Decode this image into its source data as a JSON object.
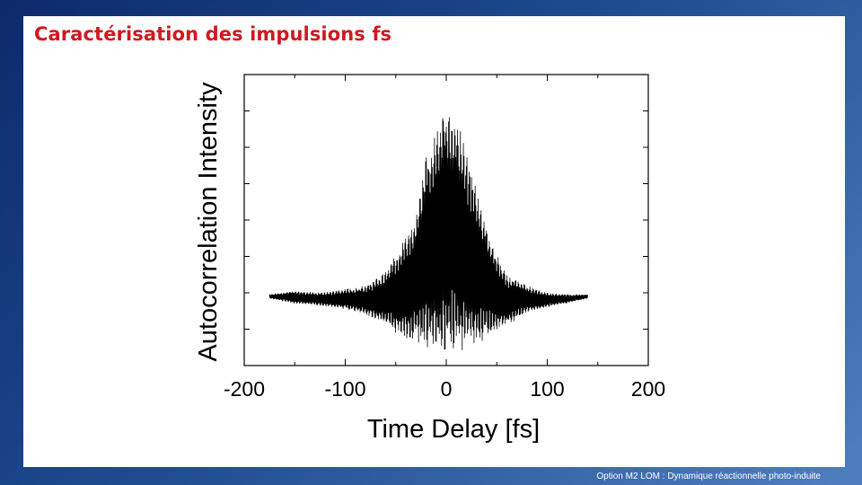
{
  "slide": {
    "title": "Caractérisation des impulsions fs",
    "footer": "Option M2 LOM : Dynamique réactionnelle photo-induite"
  },
  "chart_data": {
    "type": "line",
    "title": "",
    "xlabel": "Time Delay [fs]",
    "ylabel": "Autocorrelation Intensity",
    "xlim": [
      -200,
      200
    ],
    "ylim": [
      0,
      8
    ],
    "x_ticks": [
      -200,
      -100,
      0,
      100,
      200
    ],
    "x_tick_labels": [
      "-200",
      "-100",
      "0",
      "100",
      "200"
    ],
    "y_tick_labels_shown": false,
    "grid": false,
    "series": [
      {
        "x": [
          -175,
          -150,
          -125,
          -100,
          -80,
          -60,
          -45,
          -30,
          -20,
          -10,
          -5,
          0,
          5,
          10,
          20,
          30,
          45,
          60,
          80,
          100,
          125,
          140
        ],
        "upper": [
          1.95,
          2.05,
          2.0,
          2.1,
          2.2,
          2.6,
          3.3,
          4.1,
          5.9,
          6.7,
          7.2,
          7.5,
          7.2,
          6.8,
          6.1,
          4.9,
          3.4,
          2.5,
          2.2,
          2.0,
          1.95,
          1.95
        ],
        "lower": [
          1.85,
          1.7,
          1.65,
          1.55,
          1.4,
          1.1,
          0.8,
          0.6,
          0.45,
          0.25,
          0.15,
          0.1,
          0.15,
          0.2,
          0.35,
          0.55,
          0.85,
          1.1,
          1.45,
          1.6,
          1.75,
          1.85
        ]
      }
    ]
  }
}
